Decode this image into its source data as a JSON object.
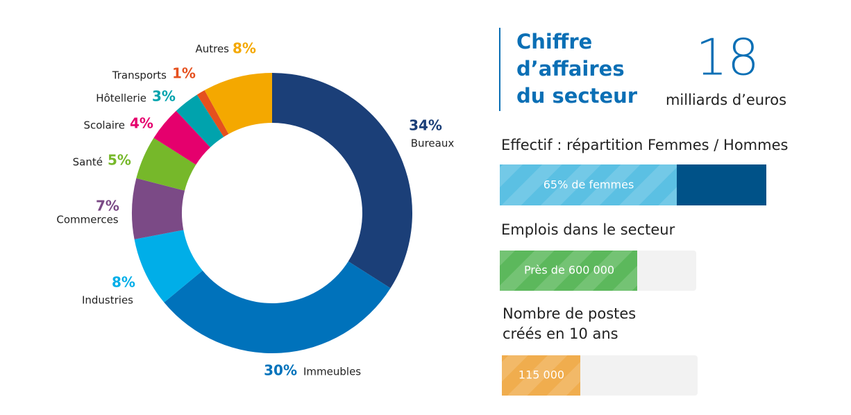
{
  "chart_data": {
    "type": "pie",
    "donut": true,
    "categories": [
      "Bureaux",
      "Immeubles",
      "Industries",
      "Commerces",
      "Santé",
      "Scolaire",
      "Hôtellerie",
      "Transports",
      "Autres"
    ],
    "values": [
      34,
      30,
      8,
      7,
      5,
      4,
      3,
      1,
      8
    ],
    "value_labels": [
      "34%",
      "30%",
      "8%",
      "7%",
      "5%",
      "4%",
      "3%",
      "1%",
      "8%"
    ],
    "colors": [
      "#1b3f78",
      "#0072bb",
      "#00aee8",
      "#7b4a86",
      "#76b82a",
      "#e5006d",
      "#00a3ad",
      "#e5501e",
      "#f4a800"
    ]
  },
  "revenue": {
    "title_lines": [
      "Chiffre",
      "d’affaires",
      "du secteur"
    ],
    "figure": 18,
    "unit": "milliards d’euros"
  },
  "workforce": {
    "title": "Effectif : répartition Femmes / Hommes",
    "bar_label": "65% de femmes"
  },
  "jobs": {
    "title": "Emplois dans le secteur",
    "bar_label": "Près de 600 000"
  },
  "new_jobs": {
    "title_lines": [
      "Nombre de postes",
      "créés en 10 ans"
    ],
    "bar_label": "115 000"
  }
}
